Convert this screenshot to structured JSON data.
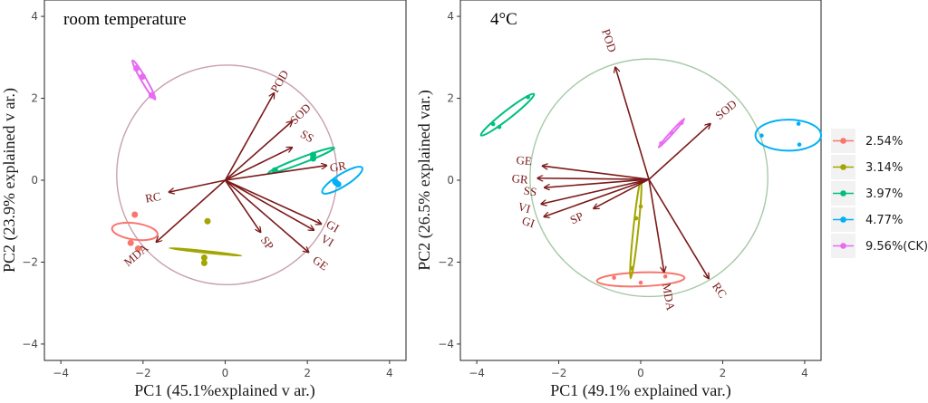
{
  "chart_data": [
    {
      "type": "scatter",
      "subtype": "pca-biplot",
      "title": "room temperature",
      "xlabel": "PC1 (45.1%explained v ar.)",
      "ylabel": "PC2 (23.9% explained v ar.)",
      "xlim": [
        -4.4,
        4.4
      ],
      "ylim": [
        -4.4,
        4.4
      ],
      "xticks": [
        -4,
        -2,
        0,
        2,
        4
      ],
      "yticks": [
        -4,
        -2,
        0,
        2,
        4
      ],
      "xtick_labels": [
        "−4",
        "−2",
        "0",
        "2",
        "4"
      ],
      "ytick_labels": [
        "−4",
        "−2",
        "0",
        "2",
        "4"
      ],
      "grid": false,
      "correlation_circle": {
        "center": [
          0.04,
          0.13
        ],
        "radius": 2.68,
        "color": "#c9a0aa"
      },
      "arrow_origin": [
        0,
        0
      ],
      "arrow_color": "#7b1a1a",
      "variables": [
        {
          "name": "POD",
          "x": 1.19,
          "y": 2.13,
          "label_x": 1.35,
          "label_y": 2.4,
          "angle": -60
        },
        {
          "name": "SOD",
          "x": 1.63,
          "y": 1.44,
          "label_x": 1.85,
          "label_y": 1.6,
          "angle": -45
        },
        {
          "name": "SS",
          "x": 1.63,
          "y": 0.8,
          "label_x": 1.98,
          "label_y": 1.05,
          "angle": 30
        },
        {
          "name": "GR",
          "x": 2.47,
          "y": 0.36,
          "label_x": 2.75,
          "label_y": 0.3,
          "angle": -10
        },
        {
          "name": "RC",
          "x": -1.37,
          "y": -0.29,
          "label_x": -1.75,
          "label_y": -0.45,
          "angle": -10
        },
        {
          "name": "MDA",
          "x": -1.68,
          "y": -1.51,
          "label_x": -2.15,
          "label_y": -1.85,
          "angle": -40
        },
        {
          "name": "SP",
          "x": 0.86,
          "y": -1.27,
          "label_x": 1.0,
          "label_y": -1.55,
          "angle": 55
        },
        {
          "name": "GI",
          "x": 2.34,
          "y": -1.07,
          "label_x": 2.6,
          "label_y": -1.15,
          "angle": 30
        },
        {
          "name": "VI",
          "x": 2.16,
          "y": -1.22,
          "label_x": 2.47,
          "label_y": -1.5,
          "angle": 30
        },
        {
          "name": "GE",
          "x": 2.03,
          "y": -1.76,
          "label_x": 2.3,
          "label_y": -2.05,
          "angle": 35
        }
      ],
      "series": [
        {
          "name": "2.54%",
          "color": "#f8766d",
          "points": [
            [
              -2.2,
              -0.84
            ],
            [
              -2.3,
              -1.53
            ],
            [
              -2.12,
              -1.67
            ]
          ],
          "ellipse": {
            "cx": -2.2,
            "cy": -1.25,
            "rx": 0.2,
            "ry": 0.56,
            "angle": -82
          }
        },
        {
          "name": "3.14%",
          "color": "#a3a500",
          "points": [
            [
              -0.43,
              -1.0
            ],
            [
              -0.51,
              -1.89
            ],
            [
              -0.51,
              -2.02
            ]
          ],
          "ellipse": {
            "cx": -0.48,
            "cy": -1.75,
            "rx": 0.02,
            "ry": 0.88,
            "angle": -84
          }
        },
        {
          "name": "3.97%",
          "color": "#00bf7d",
          "points": [
            [
              1.21,
              0.24
            ],
            [
              2.14,
              0.62
            ],
            [
              2.14,
              0.53
            ]
          ],
          "ellipse": {
            "cx": 1.85,
            "cy": 0.48,
            "rx": 0.86,
            "ry": 0.07,
            "angle": -21
          }
        },
        {
          "name": "4.77%",
          "color": "#00b0f6",
          "points": [
            [
              2.68,
              -0.04
            ],
            [
              2.75,
              -0.1
            ],
            [
              2.7,
              -0.06
            ]
          ],
          "ellipse": {
            "cx": 2.85,
            "cy": 0.0,
            "rx": 0.57,
            "ry": 0.15,
            "angle": -32
          }
        },
        {
          "name": "9.56%(CK)",
          "color": "#e76bf3",
          "points": [
            [
              -2.16,
              2.73
            ],
            [
              -2.01,
              2.53
            ],
            [
              -1.79,
              2.07
            ]
          ],
          "ellipse": {
            "cx": -1.98,
            "cy": 2.45,
            "rx": 0.55,
            "ry": 0.06,
            "angle": 60
          }
        }
      ]
    },
    {
      "type": "scatter",
      "subtype": "pca-biplot",
      "title": "4°C",
      "xlabel": "PC1 (49.1% explained var.)",
      "ylabel": "PC2 (26.5% explained var.)",
      "xlim": [
        -4.4,
        4.4
      ],
      "ylim": [
        -4.4,
        4.4
      ],
      "xticks": [
        -4,
        -2,
        0,
        2,
        4
      ],
      "yticks": [
        -4,
        -2,
        0,
        2,
        4
      ],
      "xtick_labels": [
        "−4",
        "−2",
        "0",
        "2",
        "4"
      ],
      "ytick_labels": [
        "−4",
        "−2",
        "0",
        "2",
        "4"
      ],
      "grid": false,
      "correlation_circle": {
        "center": [
          0.2,
          0.06
        ],
        "radius": 2.9,
        "color": "#a7c9a7"
      },
      "arrow_origin": [
        0.2,
        0.02
      ],
      "arrow_color": "#7b1a1a",
      "variables": [
        {
          "name": "POD",
          "x": -0.62,
          "y": 2.76,
          "label_x": -0.8,
          "label_y": 3.4,
          "angle": 72
        },
        {
          "name": "SOD",
          "x": 1.7,
          "y": 1.38,
          "label_x": 2.1,
          "label_y": 1.7,
          "angle": -40
        },
        {
          "name": "GE",
          "x": -2.4,
          "y": 0.35,
          "label_x": -2.85,
          "label_y": 0.45,
          "angle": 5
        },
        {
          "name": "GR",
          "x": -2.52,
          "y": 0.05,
          "label_x": -2.95,
          "label_y": 0.0,
          "angle": 5
        },
        {
          "name": "SS",
          "x": -2.35,
          "y": -0.18,
          "label_x": -2.7,
          "label_y": -0.3,
          "angle": 8
        },
        {
          "name": "VI",
          "x": -2.43,
          "y": -0.58,
          "label_x": -2.85,
          "label_y": -0.7,
          "angle": 15
        },
        {
          "name": "GI",
          "x": -2.36,
          "y": -0.89,
          "label_x": -2.75,
          "label_y": -1.05,
          "angle": 18
        },
        {
          "name": "SP",
          "x": -1.15,
          "y": -0.69,
          "label_x": -1.55,
          "label_y": -0.95,
          "angle": -25
        },
        {
          "name": "MDA",
          "x": 0.57,
          "y": -2.24,
          "label_x": 0.65,
          "label_y": -2.85,
          "angle": 80
        },
        {
          "name": "RC",
          "x": 1.66,
          "y": -2.4,
          "label_x": 1.9,
          "label_y": -2.7,
          "angle": 55
        }
      ],
      "series": [
        {
          "name": "2.54%",
          "color": "#f8766d",
          "points": [
            [
              -0.65,
              -2.38
            ],
            [
              0.0,
              -2.5
            ],
            [
              0.6,
              -2.35
            ]
          ],
          "ellipse": {
            "cx": 0.0,
            "cy": -2.42,
            "rx": 1.07,
            "ry": 0.17,
            "angle": -2
          }
        },
        {
          "name": "3.14%",
          "color": "#a3a500",
          "points": [
            [
              0.0,
              -0.64
            ],
            [
              -0.11,
              -0.93
            ],
            [
              -0.22,
              -2.15
            ]
          ],
          "ellipse": {
            "cx": -0.12,
            "cy": -1.2,
            "rx": 1.2,
            "ry": 0.06,
            "angle": -84
          }
        },
        {
          "name": "3.97%",
          "color": "#00bf7d",
          "points": [
            [
              -3.6,
              1.37
            ],
            [
              -3.45,
              1.3
            ],
            [
              -2.75,
              2.03
            ]
          ],
          "ellipse": {
            "cx": -3.25,
            "cy": 1.6,
            "rx": 0.82,
            "ry": 0.1,
            "angle": -38
          }
        },
        {
          "name": "4.77%",
          "color": "#00b0f6",
          "points": [
            [
              2.95,
              1.09
            ],
            [
              3.85,
              1.38
            ],
            [
              3.87,
              0.87
            ]
          ],
          "ellipse": {
            "cx": 3.6,
            "cy": 1.1,
            "rx": 0.8,
            "ry": 0.38,
            "angle": 0
          }
        },
        {
          "name": "9.56%(CK)",
          "color": "#e76bf3",
          "points": [
            [
              0.5,
              0.9
            ],
            [
              0.75,
              1.15
            ],
            [
              1.0,
              1.4
            ]
          ],
          "ellipse": {
            "cx": 0.75,
            "cy": 1.15,
            "rx": 0.47,
            "ry": 0.03,
            "angle": -48
          }
        }
      ]
    }
  ],
  "legend": {
    "placement": "right",
    "items": [
      {
        "label": "2.54%",
        "color": "#f8766d"
      },
      {
        "label": "3.14%",
        "color": "#a3a500"
      },
      {
        "label": "3.97%",
        "color": "#00bf7d"
      },
      {
        "label": "4.77%",
        "color": "#00b0f6"
      },
      {
        "label": "9.56%(CK)",
        "color": "#e76bf3"
      }
    ]
  }
}
